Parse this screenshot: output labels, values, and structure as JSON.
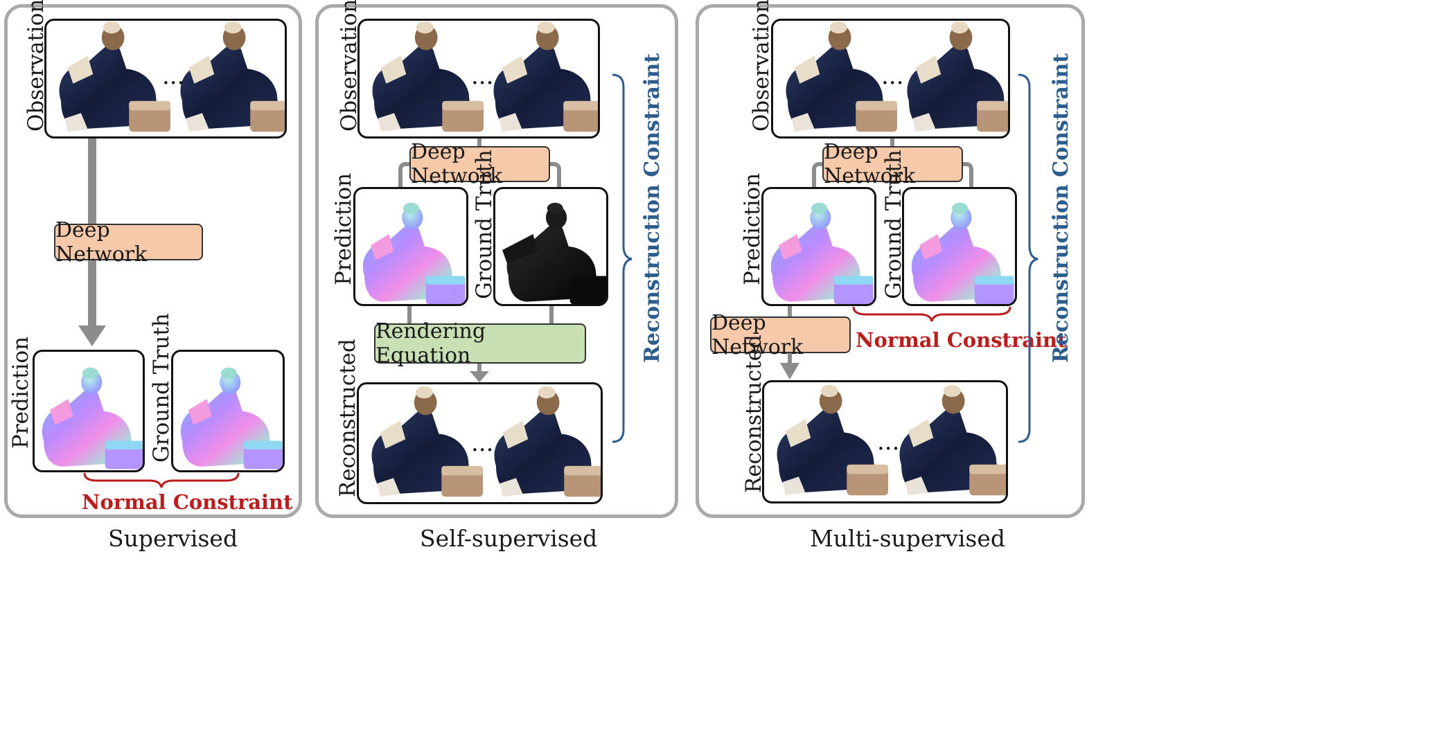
{
  "panels": [
    {
      "caption": "Supervised",
      "labels": {
        "prediction": "Prediction",
        "ground_truth": "Ground Truth"
      },
      "network": "Deep Network",
      "normal_constraint": "Normal Constraint",
      "observations": "Observations",
      "ellipsis": "..."
    },
    {
      "caption": "Self-supervised",
      "labels": {
        "observations": "Observations",
        "prediction": "Prediction",
        "ground_truth": "Ground Truth",
        "reconstructed": "Reconstructed"
      },
      "network": "Deep Network",
      "rendering": "Rendering Equation",
      "reconstruction_constraint": "Reconstruction Constraint",
      "ellipsis": "..."
    },
    {
      "caption": "Multi-supervised",
      "labels": {
        "observations": "Observations",
        "prediction": "Prediction",
        "ground_truth": "Ground Truth",
        "reconstructed": "Reconstructed"
      },
      "network_top": "Deep Network",
      "network_bottom": "Deep Network",
      "normal_constraint": "Normal Constraint",
      "reconstruction_constraint": "Reconstruction Constraint",
      "ellipsis": "..."
    }
  ],
  "colors": {
    "panel_border": "#a9a9a9",
    "network_fill": "#f6c9ab",
    "rendering_fill": "#c8e0b3",
    "normal_constraint": "#bb1c1c",
    "reconstruction_constraint": "#2c5d8c",
    "arrow": "#8c8c8c"
  }
}
